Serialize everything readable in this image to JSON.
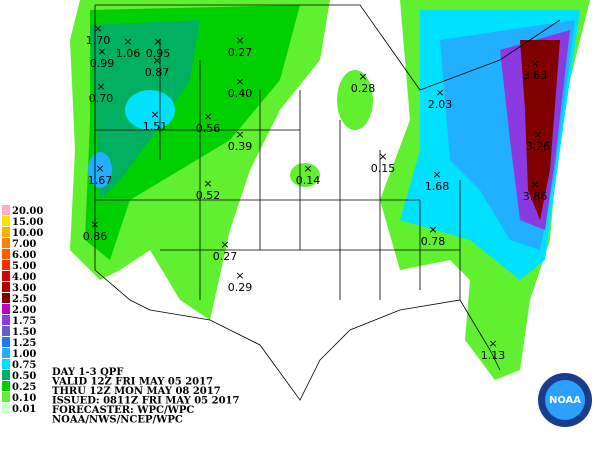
{
  "legend": [
    {
      "label": "20.00",
      "color": "#ffb0c0"
    },
    {
      "label": "15.00",
      "color": "#ffe000"
    },
    {
      "label": "10.00",
      "color": "#ffb000"
    },
    {
      "label": "7.00",
      "color": "#ff8000"
    },
    {
      "label": "6.00",
      "color": "#ff5a00"
    },
    {
      "label": "5.00",
      "color": "#ff2a00"
    },
    {
      "label": "4.00",
      "color": "#d80000"
    },
    {
      "label": "3.00",
      "color": "#b00000"
    },
    {
      "label": "2.50",
      "color": "#800000"
    },
    {
      "label": "2.00",
      "color": "#c000c0"
    },
    {
      "label": "1.75",
      "color": "#8a3ae0"
    },
    {
      "label": "1.50",
      "color": "#6a5acd"
    },
    {
      "label": "1.25",
      "color": "#1e78ff"
    },
    {
      "label": "1.00",
      "color": "#20b0ff"
    },
    {
      "label": "0.75",
      "color": "#00e0ff"
    },
    {
      "label": "0.50",
      "color": "#00b060"
    },
    {
      "label": "0.25",
      "color": "#00d000"
    },
    {
      "label": "0.10",
      "color": "#60f030"
    },
    {
      "label": "0.01",
      "color": "#d0ffd0"
    }
  ],
  "header": [
    "DAY 1-3 QPF",
    "VALID 12Z FRI MAY 05 2017",
    "THRU 12Z MON MAY 08 2017",
    "ISSUED: 0811Z FRI MAY 05 2017",
    "FORECASTER: WPC/WPC",
    "NOAA/NWS/NCEP/WPC"
  ],
  "logo": "NOAA",
  "labels": [
    "1.70",
    "1.06",
    "0.95",
    "0.99",
    "0.87",
    "0.27",
    "0.70",
    "0.40",
    "0.56",
    "0.39",
    "1.51",
    "0.28",
    "2.03",
    "3.63",
    "3.26",
    "1.67",
    "0.52",
    "0.14",
    "0.15",
    "1.68",
    "3.86",
    "0.86",
    "0.27",
    "0.29",
    "0.78",
    "1.13"
  ]
}
